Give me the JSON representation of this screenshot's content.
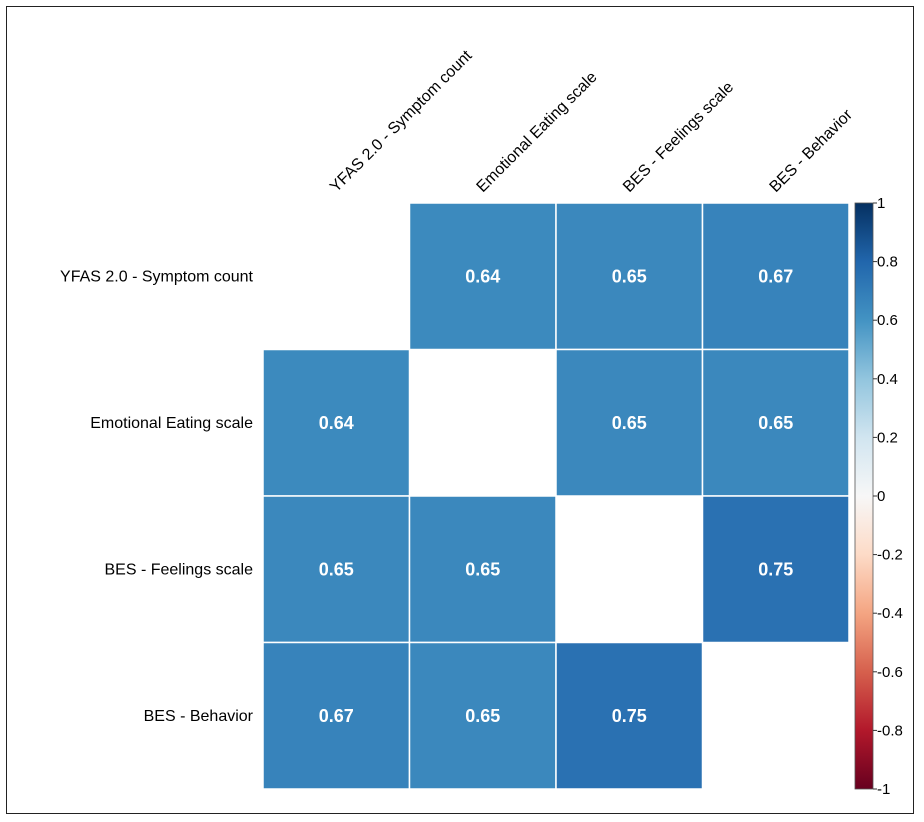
{
  "chart_data": {
    "type": "heatmap",
    "variables": [
      "YFAS 2.0 - Symptom count",
      "Emotional Eating scale",
      "BES - Feelings scale",
      "BES - Behavior"
    ],
    "matrix": [
      [
        null,
        0.64,
        0.65,
        0.67
      ],
      [
        0.64,
        null,
        0.65,
        0.65
      ],
      [
        0.65,
        0.65,
        null,
        0.75
      ],
      [
        0.67,
        0.65,
        0.75,
        null
      ]
    ],
    "value_labels": [
      [
        "",
        "0.64",
        "0.65",
        "0.67"
      ],
      [
        "0.64",
        "",
        "0.65",
        "0.65"
      ],
      [
        "0.65",
        "0.65",
        "",
        "0.75"
      ],
      [
        "0.67",
        "0.65",
        "0.75",
        ""
      ]
    ],
    "color_scale": {
      "range": [
        -1,
        1
      ],
      "low_color": "#67001f",
      "mid_color": "#f7f7f7",
      "high_color": "#053061",
      "ticks": [
        "1",
        "0.8",
        "0.6",
        "0.4",
        "0.2",
        "0",
        "-0.2",
        "-0.4",
        "-0.6",
        "-0.8",
        "-1"
      ],
      "tick_values": [
        1,
        0.8,
        0.6,
        0.4,
        0.2,
        0,
        -0.2,
        -0.4,
        -0.6,
        -0.8,
        -1
      ]
    },
    "legend_placement": "right",
    "grid": false
  }
}
